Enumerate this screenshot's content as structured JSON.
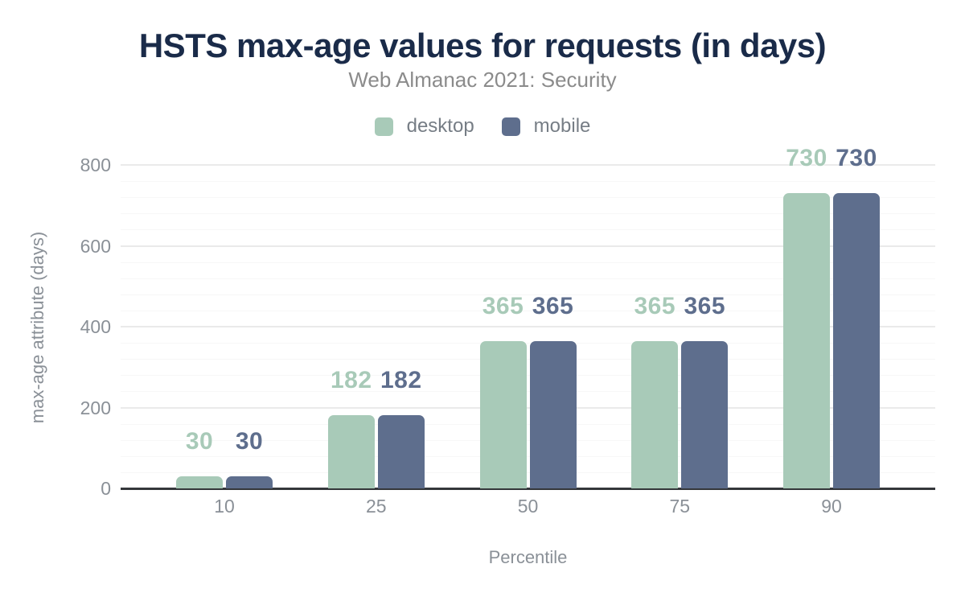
{
  "chart_data": {
    "type": "bar",
    "title": "HSTS max-age values for requests (in days)",
    "subtitle": "Web Almanac 2021: Security",
    "xlabel": "Percentile",
    "ylabel": "max-age attribute (days)",
    "categories": [
      "10",
      "25",
      "50",
      "75",
      "90"
    ],
    "series": [
      {
        "name": "desktop",
        "color": "#a8cab8",
        "values": [
          30,
          182,
          365,
          365,
          730
        ]
      },
      {
        "name": "mobile",
        "color": "#5e6e8d",
        "values": [
          30,
          182,
          365,
          365,
          730
        ]
      }
    ],
    "ylim": [
      0,
      800
    ],
    "yticks": [
      0,
      200,
      400,
      600,
      800
    ],
    "grid": {
      "minor_step": 40,
      "major_step": 200,
      "vertical": false
    },
    "legend_position": "top",
    "data_labels": true
  },
  "colors": {
    "title": "#1a2b49",
    "subtitle": "#8b8b8b",
    "axis_text": "#8a9097",
    "axis_line": "#34373a",
    "grid_major": "#eaeaea",
    "grid_minor": "#f7f7f7",
    "background": "#ffffff"
  }
}
